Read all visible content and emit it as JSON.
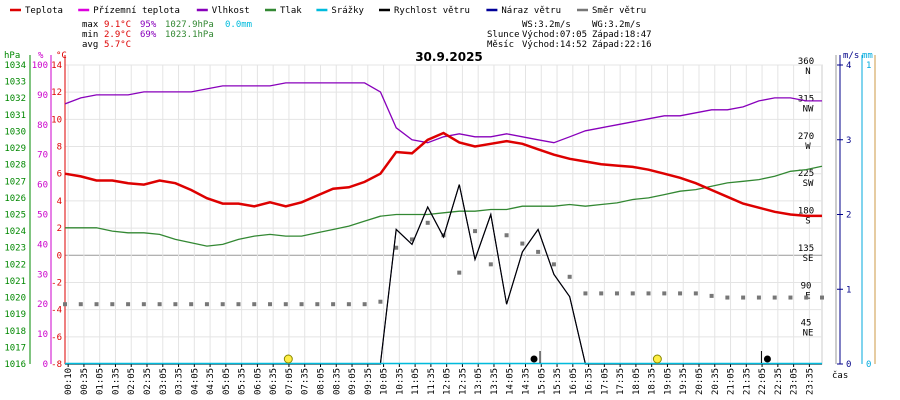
{
  "colors": {
    "temperature": "#dd0000",
    "apparent_temperature": "#dd00dd",
    "humidity": "#8800bb",
    "pressure": "#338833",
    "precipitation": "#00bbdd",
    "wind_speed": "#000000",
    "wind_gust": "#000099",
    "wind_direction": "#777777",
    "hpa_axis": "#008800",
    "percent_axis": "#cc00cc",
    "celsius_axis": "#dd0000",
    "ms_axis": "#000088",
    "mm_axis": "#00aadd",
    "sun_marker": "#ffee44"
  },
  "legend": [
    {
      "key": "temperature",
      "label": "Teplota"
    },
    {
      "key": "apparent_temperature",
      "label": "Přízemní teplota"
    },
    {
      "key": "humidity",
      "label": "Vlhkost"
    },
    {
      "key": "pressure",
      "label": "Tlak"
    },
    {
      "key": "precipitation",
      "label": "Srážky"
    },
    {
      "key": "wind_speed",
      "label": "Rychlost větru"
    },
    {
      "key": "wind_gust",
      "label": "Náraz větru"
    },
    {
      "key": "wind_direction",
      "label": "Směr větru"
    }
  ],
  "stats": {
    "max_label": "max",
    "max_temp": "9.1°C",
    "max_hum": "95%",
    "max_press": "1027.9hPa",
    "max_rain": "0.0mm",
    "min_label": "min",
    "min_temp": "2.9°C",
    "min_hum": "69%",
    "min_press": "1023.1hPa",
    "avg_label": "avg",
    "avg_temp": "5.7°C"
  },
  "wind_info": {
    "ws": "WS:3.2m/s",
    "wg": "WG:3.2m/s"
  },
  "sun": {
    "label": "Slunce",
    "rise": "Východ:07:05",
    "set": "Západ:18:47"
  },
  "moon": {
    "label": "Měsíc",
    "rise": "Východ:14:52",
    "set": "Západ:22:16"
  },
  "units": {
    "hpa": "hPa",
    "pct": "%",
    "degc": "°C",
    "ms": "m/s",
    "mm": "mm",
    "time": "čas"
  },
  "chart_data": {
    "type": "line",
    "title": "30.9.2025",
    "x_hours": [
      0,
      0.5,
      1,
      1.5,
      2,
      2.5,
      3,
      3.5,
      4,
      4.5,
      5,
      5.5,
      6,
      6.5,
      7,
      7.5,
      8,
      8.5,
      9,
      9.5,
      10,
      10.5,
      11,
      11.5,
      12,
      12.5,
      13,
      13.5,
      14,
      14.5,
      15,
      15.5,
      16,
      16.5,
      17,
      17.5,
      18,
      18.5,
      19,
      19.5,
      20,
      20.5,
      21,
      21.5,
      22,
      22.5,
      23,
      23.5,
      24
    ],
    "x_tick_labels": [
      "00:10",
      "00:35",
      "01:05",
      "01:35",
      "02:05",
      "02:35",
      "03:05",
      "03:35",
      "04:05",
      "04:35",
      "05:05",
      "05:35",
      "06:05",
      "06:35",
      "07:05",
      "07:35",
      "08:05",
      "08:35",
      "09:05",
      "09:35",
      "10:05",
      "10:35",
      "11:05",
      "11:35",
      "12:05",
      "12:35",
      "13:05",
      "13:35",
      "14:05",
      "14:35",
      "15:05",
      "15:35",
      "16:05",
      "16:35",
      "17:05",
      "17:35",
      "18:05",
      "18:35",
      "19:05",
      "19:35",
      "20:05",
      "20:35",
      "21:05",
      "21:35",
      "22:05",
      "22:35",
      "23:05",
      "23:35"
    ],
    "axes": {
      "hpa": {
        "min": 1016,
        "max": 1034,
        "step": 1
      },
      "percent": {
        "min": 0,
        "max": 100,
        "step": 10
      },
      "celsius": {
        "min": -8,
        "max": 14,
        "step": 2
      },
      "direction": {
        "min": 0,
        "max": 360,
        "ticks": [
          [
            360,
            "N"
          ],
          [
            315,
            "NW"
          ],
          [
            270,
            "W"
          ],
          [
            225,
            "SW"
          ],
          [
            180,
            "S"
          ],
          [
            135,
            "SE"
          ],
          [
            90,
            "E"
          ],
          [
            45,
            "NE"
          ]
        ]
      },
      "ms": {
        "min": 0,
        "max": 4,
        "ticks": [
          4,
          3,
          2,
          1,
          0
        ]
      },
      "mm": {
        "min": 0,
        "max": 1,
        "ticks": [
          1,
          0
        ]
      }
    },
    "series": [
      {
        "key": "temperature",
        "name": "Teplota",
        "values": [
          6.0,
          5.8,
          5.5,
          5.5,
          5.3,
          5.2,
          5.5,
          5.3,
          4.8,
          4.2,
          3.8,
          3.8,
          3.6,
          3.9,
          3.6,
          3.9,
          4.4,
          4.9,
          5.0,
          5.4,
          6.0,
          7.6,
          7.5,
          8.5,
          9.0,
          8.3,
          8.0,
          8.2,
          8.4,
          8.2,
          7.8,
          7.4,
          7.1,
          6.9,
          6.7,
          6.6,
          6.5,
          6.3,
          6.0,
          5.7,
          5.3,
          4.8,
          4.3,
          3.8,
          3.5,
          3.2,
          3.0,
          2.9,
          2.9
        ]
      },
      {
        "key": "apparent_temperature",
        "name": "Přízemní teplota",
        "values": [
          6.0,
          5.8,
          5.5,
          5.5,
          5.3,
          5.2,
          5.5,
          5.3,
          4.8,
          4.2,
          3.8,
          3.8,
          3.6,
          3.9,
          3.6,
          3.9,
          4.4,
          4.9,
          5.0,
          5.4,
          6.0,
          7.6,
          7.5,
          8.5,
          9.0,
          8.3,
          8.0,
          8.2,
          8.4,
          8.2,
          7.8,
          7.4,
          7.1,
          6.9,
          6.7,
          6.6,
          6.5,
          6.3,
          6.0,
          5.7,
          5.3,
          4.8,
          4.3,
          3.8,
          3.5,
          3.2,
          3.0,
          2.9,
          2.9
        ]
      },
      {
        "key": "humidity",
        "name": "Vlhkost",
        "values": [
          87,
          89,
          90,
          90,
          90,
          91,
          91,
          91,
          91,
          92,
          93,
          93,
          93,
          93,
          94,
          94,
          94,
          94,
          94,
          94,
          91,
          79,
          75,
          74,
          76,
          77,
          76,
          76,
          77,
          76,
          75,
          74,
          76,
          78,
          79,
          80,
          81,
          82,
          83,
          83,
          84,
          85,
          85,
          86,
          88,
          89,
          89,
          88,
          88
        ]
      },
      {
        "key": "pressure",
        "name": "Tlak",
        "values": [
          1024.2,
          1024.2,
          1024.2,
          1024.0,
          1023.9,
          1023.9,
          1023.8,
          1023.5,
          1023.3,
          1023.1,
          1023.2,
          1023.5,
          1023.7,
          1023.8,
          1023.7,
          1023.7,
          1023.9,
          1024.1,
          1024.3,
          1024.6,
          1024.9,
          1025.0,
          1025.0,
          1025.0,
          1025.1,
          1025.2,
          1025.2,
          1025.3,
          1025.3,
          1025.5,
          1025.5,
          1025.5,
          1025.6,
          1025.5,
          1025.6,
          1025.7,
          1025.9,
          1026.0,
          1026.2,
          1026.4,
          1026.5,
          1026.7,
          1026.9,
          1027.0,
          1027.1,
          1027.3,
          1027.6,
          1027.7,
          1027.9
        ]
      },
      {
        "key": "wind_speed",
        "name": "Rychlost větru",
        "values": [
          0,
          0,
          0,
          0,
          0,
          0,
          0,
          0,
          0,
          0,
          0,
          0,
          0,
          0,
          0,
          0,
          0,
          0,
          0,
          0,
          0,
          1.8,
          1.6,
          2.1,
          1.7,
          2.4,
          1.4,
          2.0,
          0.8,
          1.5,
          1.8,
          1.2,
          0.9,
          0.0,
          0,
          0,
          0,
          0,
          0,
          0,
          0,
          0,
          0,
          0,
          0,
          0,
          0,
          0,
          0
        ]
      },
      {
        "key": "wind_gust",
        "name": "Náraz větru",
        "values": [
          0,
          0,
          0,
          0,
          0,
          0,
          0,
          0,
          0,
          0,
          0,
          0,
          0,
          0,
          0,
          0,
          0,
          0,
          0,
          0,
          0,
          1.8,
          1.6,
          2.1,
          1.7,
          2.4,
          1.4,
          2.0,
          0.8,
          1.5,
          1.8,
          1.2,
          0.9,
          0.0,
          0,
          0,
          0,
          0,
          0,
          0,
          0,
          0,
          0,
          0,
          0,
          0,
          0,
          0,
          0
        ]
      },
      {
        "key": "wind_direction",
        "name": "Směr větru",
        "values": [
          72,
          72,
          72,
          72,
          72,
          72,
          72,
          72,
          72,
          72,
          72,
          72,
          72,
          72,
          72,
          72,
          72,
          72,
          72,
          72,
          75,
          140,
          150,
          170,
          155,
          110,
          160,
          120,
          155,
          145,
          135,
          120,
          105,
          85,
          85,
          85,
          85,
          85,
          85,
          85,
          85,
          82,
          80,
          80,
          80,
          80,
          80,
          80,
          80
        ]
      }
    ],
    "precipitation_mm": 0.0,
    "events": [
      {
        "type": "sunrise",
        "hour": 7.08
      },
      {
        "type": "moonrise",
        "hour": 14.87
      },
      {
        "type": "sunset",
        "hour": 18.78
      },
      {
        "type": "moonset",
        "hour": 22.27
      }
    ]
  }
}
